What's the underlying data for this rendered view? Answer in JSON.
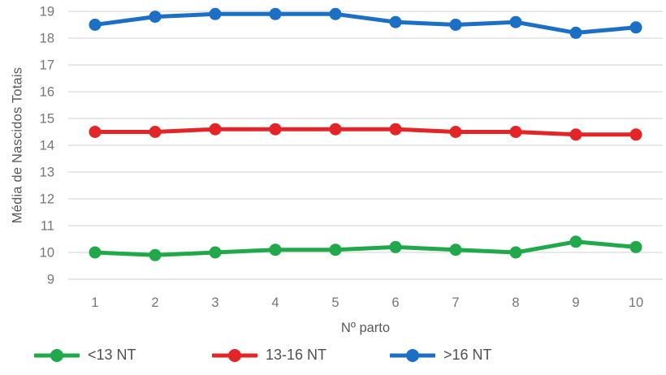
{
  "chart_data": {
    "type": "line",
    "title": "",
    "xlabel": "Nº parto",
    "ylabel": "Média de Nascidos Totais",
    "categories": [
      "1",
      "2",
      "3",
      "4",
      "5",
      "6",
      "7",
      "8",
      "9",
      "10"
    ],
    "ylim": [
      9,
      19
    ],
    "ytick_step": 1,
    "grid": true,
    "legend_position": "bottom",
    "series": [
      {
        "name": "<13 NT",
        "color": "#20A84B",
        "values": [
          10.0,
          9.9,
          10.0,
          10.1,
          10.1,
          10.2,
          10.1,
          10.0,
          10.4,
          10.2
        ]
      },
      {
        "name": "13-16 NT",
        "color": "#E42527",
        "values": [
          14.5,
          14.5,
          14.6,
          14.6,
          14.6,
          14.6,
          14.5,
          14.5,
          14.4,
          14.4
        ]
      },
      {
        "name": ">16 NT",
        "color": "#1B6FC4",
        "values": [
          18.5,
          18.8,
          18.9,
          18.9,
          18.9,
          18.6,
          18.5,
          18.6,
          18.2,
          18.4
        ]
      }
    ],
    "colors": {
      "grid": "#D9D9D9",
      "tick_text": "#767676",
      "axis_title_text": "#595959",
      "legend_text": "#4F4F4F",
      "background": "#FFFFFF"
    }
  }
}
